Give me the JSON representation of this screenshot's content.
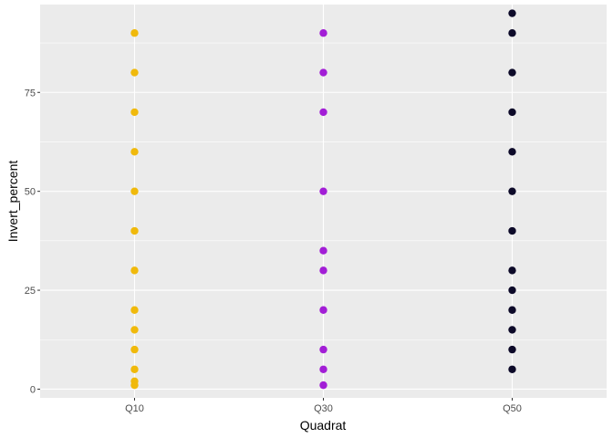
{
  "chart_data": {
    "type": "scatter",
    "title": "",
    "xlabel": "Quadrat",
    "ylabel": "Invert_percent",
    "categories": [
      "Q10",
      "Q30",
      "Q50"
    ],
    "ylim": [
      -2.2,
      97.2
    ],
    "yticks": [
      0,
      25,
      50,
      75
    ],
    "grid": true,
    "legend": "none",
    "panel_background": "#ebebeb",
    "grid_color": "#ffffff",
    "series": [
      {
        "category": "Q10",
        "color": "#f0b90b",
        "values": [
          90,
          80,
          70,
          60,
          50,
          40,
          30,
          20,
          15,
          10,
          5,
          2,
          1
        ]
      },
      {
        "category": "Q30",
        "color": "#a21ed6",
        "values": [
          90,
          80,
          70,
          50,
          35,
          30,
          20,
          10,
          5,
          1
        ]
      },
      {
        "category": "Q50",
        "color": "#0d0a29",
        "values": [
          95,
          90,
          80,
          70,
          60,
          50,
          40,
          30,
          25,
          20,
          15,
          10,
          5
        ]
      }
    ]
  }
}
